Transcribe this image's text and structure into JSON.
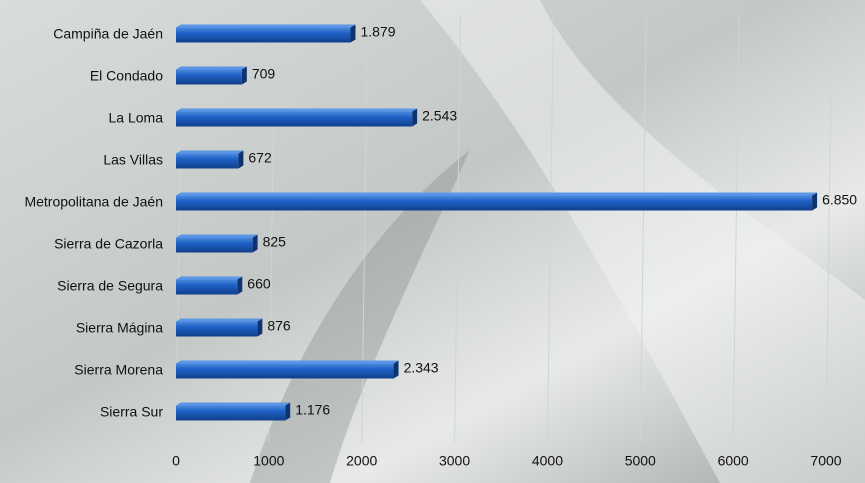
{
  "chart_data": {
    "type": "bar",
    "orientation": "horizontal",
    "categories": [
      "Campiña de Jaén",
      "El Condado",
      "La Loma",
      "Las Villas",
      "Metropolitana de Jaén",
      "Sierra de Cazorla",
      "Sierra de Segura",
      "Sierra Mágina",
      "Sierra Morena",
      "Sierra Sur"
    ],
    "values": [
      1879,
      709,
      2543,
      672,
      6850,
      825,
      660,
      876,
      2343,
      1176
    ],
    "value_labels": [
      "1.879",
      "709",
      "2.543",
      "672",
      "6.850",
      "825",
      "660",
      "876",
      "2.343",
      "1.176"
    ],
    "color": "#1c5fc4",
    "xlim": [
      0,
      7000
    ],
    "xticks": [
      0,
      1000,
      2000,
      3000,
      4000,
      5000,
      6000,
      7000
    ],
    "grid": true
  }
}
